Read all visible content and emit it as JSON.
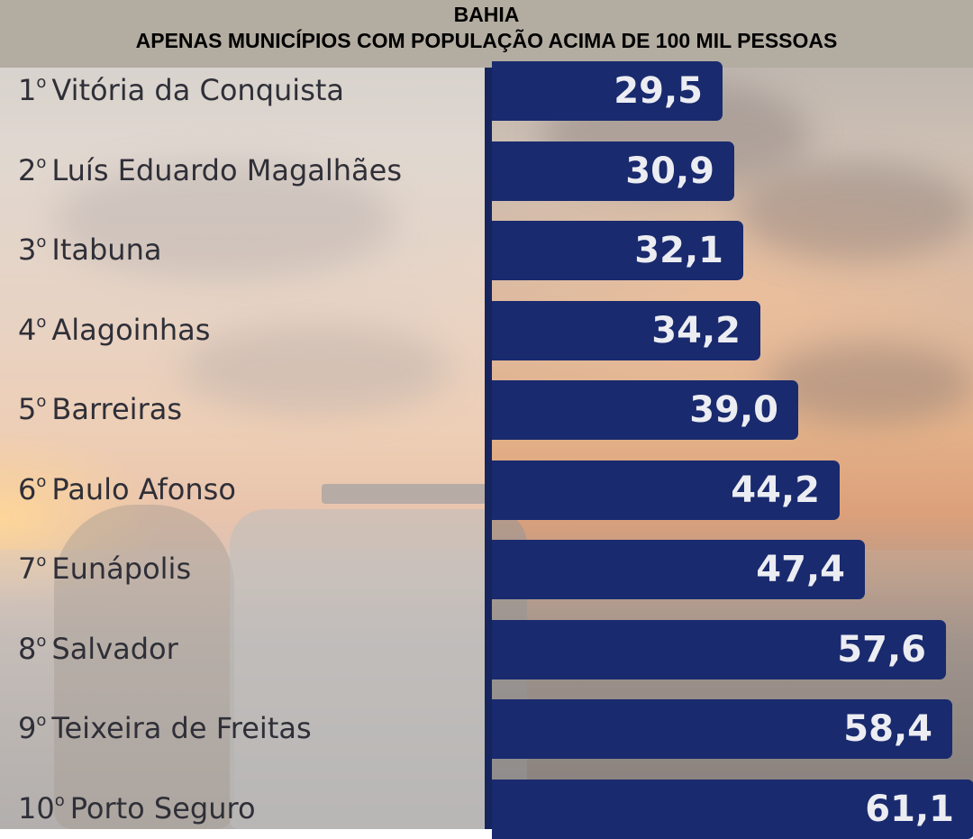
{
  "header": {
    "line1": "BAHIA",
    "line2": "APENAS MUNICÍPIOS COM POPULAÇÃO ACIMA DE 100 MIL PESSOAS"
  },
  "colors": {
    "bar": "#192a6e",
    "header_bg": "#b3aca1",
    "value_text": "#ecedf2"
  },
  "chart_data": {
    "type": "bar",
    "orientation": "horizontal",
    "categories": [
      {
        "rank": "1",
        "name": "Vitória da Conquista"
      },
      {
        "rank": "2",
        "name": "Luís Eduardo Magalhães"
      },
      {
        "rank": "3",
        "name": "Itabuna"
      },
      {
        "rank": "4",
        "name": "Alagoinhas"
      },
      {
        "rank": "5",
        "name": "Barreiras"
      },
      {
        "rank": "6",
        "name": "Paulo Afonso"
      },
      {
        "rank": "7",
        "name": "Eunápolis"
      },
      {
        "rank": "8",
        "name": "Salvador"
      },
      {
        "rank": "9",
        "name": "Teixeira de Freitas"
      },
      {
        "rank": "10",
        "name": "Porto Seguro"
      }
    ],
    "values": [
      29.5,
      30.9,
      32.1,
      34.2,
      39.0,
      44.2,
      47.4,
      57.6,
      58.4,
      61.1
    ],
    "value_labels": [
      "29,5",
      "30,9",
      "32,1",
      "34,2",
      "39,0",
      "44,2",
      "47,4",
      "57,6",
      "58,4",
      "61,1"
    ]
  }
}
